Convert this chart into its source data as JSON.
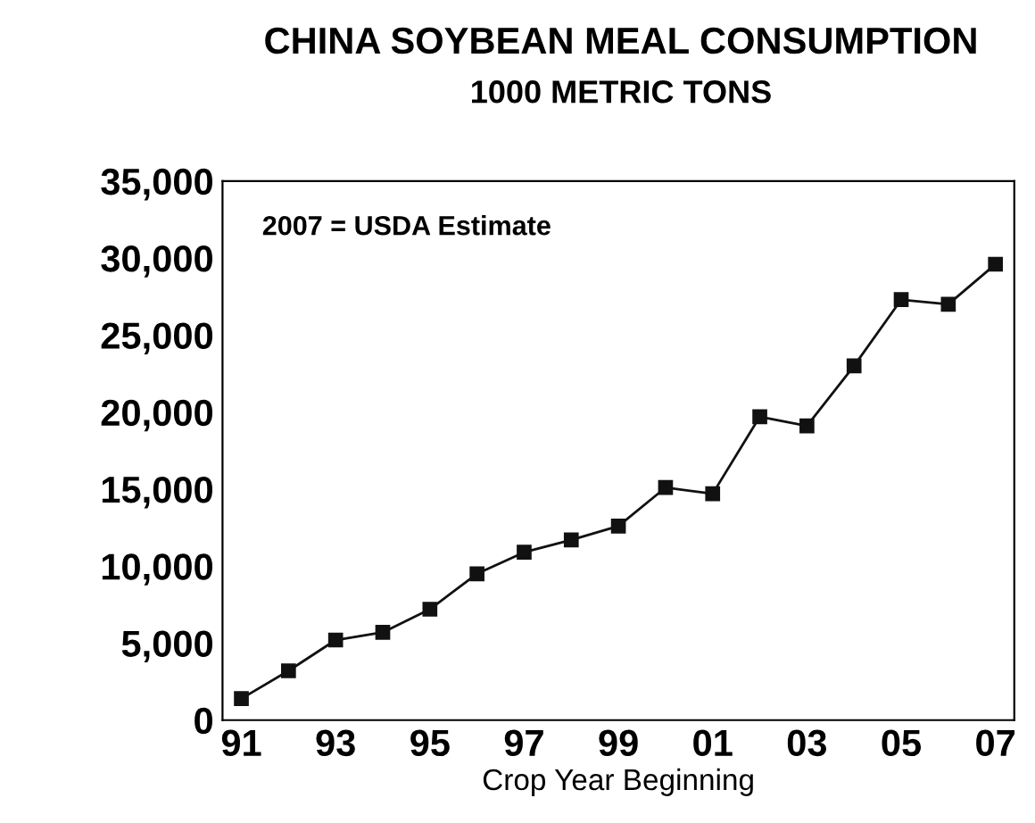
{
  "chart_data": {
    "type": "line",
    "title": "CHINA SOYBEAN MEAL CONSUMPTION",
    "subtitle": "1000 METRIC TONS",
    "xlabel": "Crop Year Beginning",
    "x": [
      1991,
      1992,
      1993,
      1994,
      1995,
      1996,
      1997,
      1998,
      1999,
      2000,
      2001,
      2002,
      2003,
      2004,
      2005,
      2006,
      2007
    ],
    "series": [
      {
        "color": "#111111",
        "values": [
          1400,
          3200,
          5200,
          5700,
          7200,
          9500,
          10900,
          11700,
          12600,
          15100,
          14700,
          19700,
          19100,
          23000,
          27300,
          27000,
          29600
        ]
      }
    ],
    "xlim": [
      1990.6,
      2007.4
    ],
    "xticks": [
      {
        "value": 1991,
        "label": "91"
      },
      {
        "value": 1993,
        "label": "93"
      },
      {
        "value": 1995,
        "label": "95"
      },
      {
        "value": 1997,
        "label": "97"
      },
      {
        "value": 1999,
        "label": "99"
      },
      {
        "value": 2001,
        "label": "01"
      },
      {
        "value": 2003,
        "label": "03"
      },
      {
        "value": 2005,
        "label": "05"
      },
      {
        "value": 2007,
        "label": "07"
      }
    ],
    "ylim": [
      0,
      35000
    ],
    "yticks": [
      {
        "value": 0,
        "label": "0"
      },
      {
        "value": 5000,
        "label": "5,000"
      },
      {
        "value": 10000,
        "label": "10,000"
      },
      {
        "value": 15000,
        "label": "15,000"
      },
      {
        "value": 20000,
        "label": "20,000"
      },
      {
        "value": 25000,
        "label": "25,000"
      },
      {
        "value": 30000,
        "label": "30,000"
      },
      {
        "value": 35000,
        "label": "35,000"
      }
    ],
    "annotations": [
      "2007 = USDA Estimate"
    ],
    "marker": "square",
    "line_style": "solid",
    "grid": false,
    "legend": false
  }
}
